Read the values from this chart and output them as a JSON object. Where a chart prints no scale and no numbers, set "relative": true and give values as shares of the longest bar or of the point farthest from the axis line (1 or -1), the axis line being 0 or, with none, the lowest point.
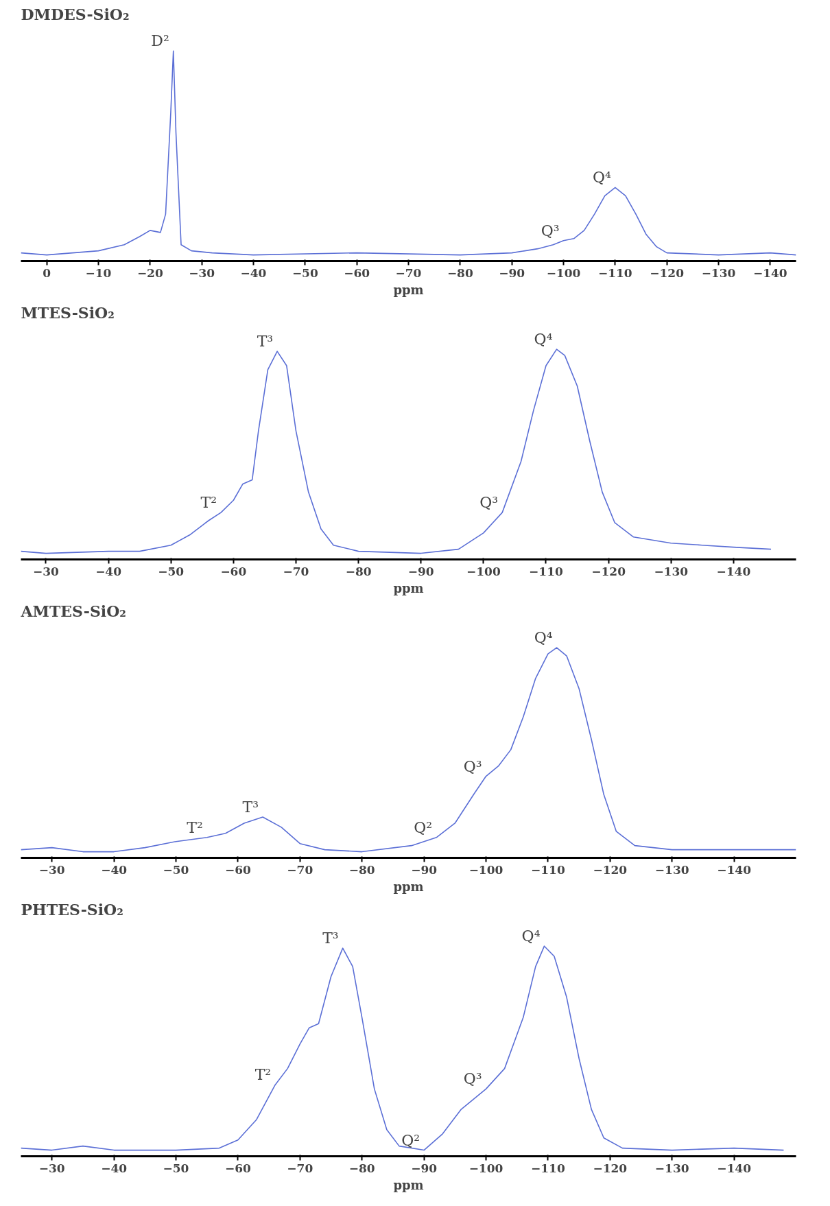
{
  "chart_data": [
    {
      "type": "line",
      "title": "DMDES-SiO₂",
      "xlabel": "ppm",
      "relative": true,
      "grid": false,
      "xlim": [
        5,
        -145
      ],
      "xticks": [
        0,
        -10,
        -20,
        -30,
        -40,
        -50,
        -60,
        -70,
        -80,
        -90,
        -100,
        -110,
        -120,
        -130,
        -140
      ],
      "annotations": [
        {
          "text": "D²",
          "x": -24.5,
          "y": 1.0
        },
        {
          "text": "Q³",
          "x": -100,
          "y": 0.07
        },
        {
          "text": "Q⁴",
          "x": -110,
          "y": 0.33
        }
      ],
      "series": [
        {
          "color": "#5b6fd6",
          "x": [
            5,
            0,
            -5,
            -10,
            -15,
            -18,
            -20,
            -22,
            -23,
            -24,
            -24.5,
            -25,
            -26,
            -28,
            -32,
            -40,
            -60,
            -80,
            -90,
            -95,
            -98,
            -100,
            -102,
            -104,
            -106,
            -108,
            -110,
            -112,
            -114,
            -116,
            -118,
            -120,
            -130,
            -140,
            -145
          ],
          "values": [
            0.01,
            0.0,
            0.01,
            0.02,
            0.05,
            0.09,
            0.12,
            0.11,
            0.2,
            0.7,
            1.0,
            0.6,
            0.05,
            0.02,
            0.01,
            0.0,
            0.01,
            0.0,
            0.01,
            0.03,
            0.05,
            0.07,
            0.08,
            0.12,
            0.2,
            0.29,
            0.33,
            0.29,
            0.2,
            0.1,
            0.04,
            0.01,
            0.0,
            0.01,
            0.0
          ]
        }
      ]
    },
    {
      "type": "line",
      "title": "MTES-SiO₂",
      "xlabel": "ppm",
      "relative": true,
      "grid": false,
      "xlim": [
        -26,
        -150
      ],
      "xticks": [
        -30,
        -40,
        -50,
        -60,
        -70,
        -80,
        -90,
        -100,
        -110,
        -120,
        -130,
        -140
      ],
      "annotations": [
        {
          "text": "T³",
          "x": -67,
          "y": 0.99
        },
        {
          "text": "T²",
          "x": -58,
          "y": 0.2
        },
        {
          "text": "Q⁴",
          "x": -111.7,
          "y": 1.0
        },
        {
          "text": "Q³",
          "x": -103,
          "y": 0.2
        }
      ],
      "series": [
        {
          "color": "#5b6fd6",
          "x": [
            -26,
            -30,
            -40,
            -45,
            -50,
            -53,
            -56,
            -58,
            -60,
            -61.5,
            -63,
            -64,
            -65.5,
            -67,
            -68.5,
            -70,
            -72,
            -74,
            -76,
            -80,
            -90,
            -96,
            -100,
            -103,
            -106,
            -108,
            -110,
            -111.7,
            -113,
            -115,
            -117,
            -119,
            -121,
            -124,
            -130,
            -135,
            -140,
            -146
          ],
          "values": [
            0.01,
            0.0,
            0.01,
            0.01,
            0.04,
            0.09,
            0.16,
            0.2,
            0.26,
            0.34,
            0.36,
            0.6,
            0.9,
            0.99,
            0.92,
            0.6,
            0.3,
            0.12,
            0.04,
            0.01,
            0.0,
            0.02,
            0.1,
            0.2,
            0.45,
            0.7,
            0.92,
            1.0,
            0.97,
            0.82,
            0.55,
            0.3,
            0.15,
            0.08,
            0.05,
            0.04,
            0.03,
            0.02
          ]
        }
      ]
    },
    {
      "type": "line",
      "title": "AMTES-SiO₂",
      "xlabel": "ppm",
      "relative": true,
      "grid": false,
      "xlim": [
        -25,
        -150
      ],
      "xticks": [
        -30,
        -40,
        -50,
        -60,
        -70,
        -80,
        -90,
        -100,
        -110,
        -120,
        -130,
        -140
      ],
      "annotations": [
        {
          "text": "T²",
          "x": -55,
          "y": 0.07
        },
        {
          "text": "T³",
          "x": -64,
          "y": 0.17
        },
        {
          "text": "Q²",
          "x": -92,
          "y": 0.07
        },
        {
          "text": "Q³",
          "x": -100,
          "y": 0.37
        },
        {
          "text": "Q⁴",
          "x": -111.4,
          "y": 1.0
        }
      ],
      "series": [
        {
          "color": "#5b6fd6",
          "x": [
            -25,
            -30,
            -35,
            -40,
            -45,
            -50,
            -55,
            -58,
            -61,
            -64,
            -67,
            -70,
            -74,
            -80,
            -88,
            -92,
            -95,
            -98,
            -100,
            -102,
            -104,
            -106,
            -108,
            -110,
            -111.4,
            -113,
            -115,
            -117,
            -119,
            -121,
            -124,
            -130,
            -140,
            -150
          ],
          "values": [
            0.01,
            0.02,
            0.0,
            0.0,
            0.02,
            0.05,
            0.07,
            0.09,
            0.14,
            0.17,
            0.12,
            0.04,
            0.01,
            0.0,
            0.03,
            0.07,
            0.14,
            0.28,
            0.37,
            0.42,
            0.5,
            0.66,
            0.85,
            0.97,
            1.0,
            0.96,
            0.8,
            0.55,
            0.28,
            0.1,
            0.03,
            0.01,
            0.01,
            0.01
          ]
        }
      ]
    },
    {
      "type": "line",
      "title": "PHTES-SiO₂",
      "xlabel": "ppm",
      "relative": true,
      "grid": false,
      "xlim": [
        -25,
        -150
      ],
      "xticks": [
        -30,
        -40,
        -50,
        -60,
        -70,
        -80,
        -90,
        -100,
        -110,
        -120,
        -130,
        -140
      ],
      "annotations": [
        {
          "text": "T³",
          "x": -76.9,
          "y": 0.99
        },
        {
          "text": "T²",
          "x": -66,
          "y": 0.32
        },
        {
          "text": "Q²",
          "x": -90,
          "y": 0.0
        },
        {
          "text": "Q³",
          "x": -100,
          "y": 0.3
        },
        {
          "text": "Q⁴",
          "x": -109.4,
          "y": 1.0
        }
      ],
      "series": [
        {
          "color": "#5b6fd6",
          "x": [
            -25,
            -30,
            -35,
            -40,
            -50,
            -57,
            -60,
            -63,
            -66,
            -68,
            -70,
            -71.5,
            -73,
            -75,
            -76.9,
            -78.5,
            -80,
            -82,
            -84,
            -86,
            -90,
            -93,
            -96,
            -100,
            -103,
            -106,
            -108,
            -109.4,
            -111,
            -113,
            -115,
            -117,
            -119,
            -122,
            -130,
            -140,
            -148
          ],
          "values": [
            0.01,
            0.0,
            0.02,
            0.0,
            0.0,
            0.01,
            0.05,
            0.15,
            0.32,
            0.4,
            0.52,
            0.6,
            0.62,
            0.85,
            0.99,
            0.9,
            0.65,
            0.3,
            0.1,
            0.02,
            0.0,
            0.08,
            0.2,
            0.3,
            0.4,
            0.65,
            0.9,
            1.0,
            0.95,
            0.75,
            0.45,
            0.2,
            0.06,
            0.01,
            0.0,
            0.01,
            0.0
          ]
        }
      ]
    }
  ]
}
